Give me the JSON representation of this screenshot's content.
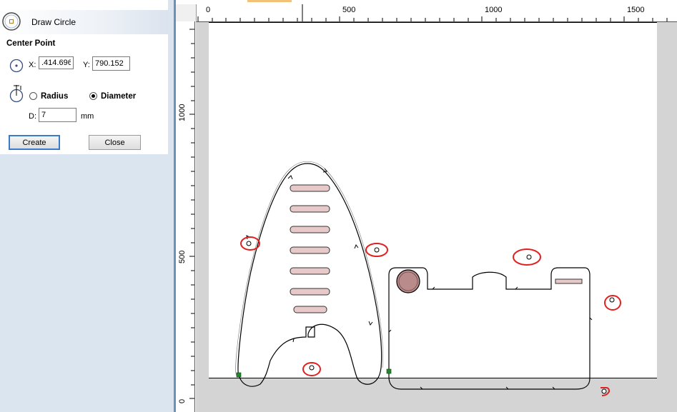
{
  "panel": {
    "title": "Draw Circle",
    "center_point_label": "Center Point",
    "x_label": "X:",
    "x_value": ".414.696",
    "y_label": "Y:",
    "y_value": "790.152",
    "radius_label": "Radius",
    "diameter_label": "Diameter",
    "selected_mode": "Diameter",
    "d_label": "D:",
    "d_value": "7",
    "unit": "mm",
    "create_label": "Create",
    "close_label": "Close"
  },
  "ruler": {
    "h_labels": [
      "0",
      "500",
      "1000",
      "1500"
    ],
    "v_labels": [
      "1000",
      "500",
      "0"
    ]
  },
  "icons": {
    "panel_icon": "draw-circle-icon",
    "center_icon": "center-point-icon",
    "size_icon": "diameter-measure-icon"
  },
  "colors": {
    "toolpath": "#000000",
    "slot_fill": "#e8c9c9",
    "circle_fill": "#b98b8b",
    "annotation": "#e02020",
    "start_marker": "#1f8a2a",
    "divider": "#6f8fb8"
  }
}
